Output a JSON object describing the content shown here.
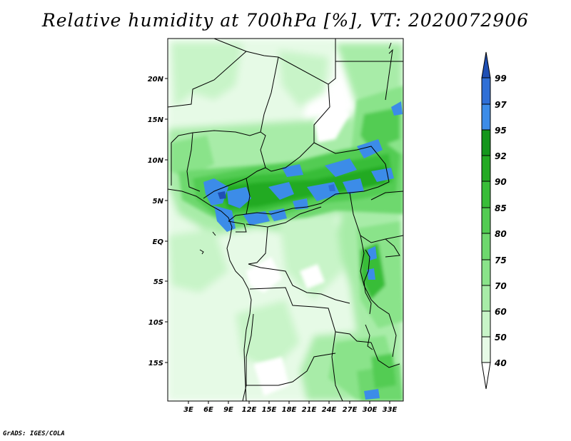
{
  "title": "Relative humidity at 700hPa [%], VT: 2020072906",
  "credit": "GrADS: IGES/COLA",
  "map": {
    "lat_labels": [
      "20N",
      "15N",
      "10N",
      "5N",
      "EQ",
      "5S",
      "10S",
      "15S"
    ],
    "lon_labels": [
      "3E",
      "6E",
      "9E",
      "12E",
      "15E",
      "18E",
      "21E",
      "24E",
      "27E",
      "30E",
      "33E"
    ]
  },
  "colorbar": {
    "levels": [
      "40",
      "50",
      "60",
      "70",
      "75",
      "80",
      "85",
      "90",
      "92",
      "95",
      "97",
      "99"
    ],
    "colors": {
      "c0": "#ffffff",
      "c40": "#e6fae6",
      "c50": "#c8f4c8",
      "c60": "#a8eca8",
      "c70": "#8ae38a",
      "c75": "#6ed86e",
      "c80": "#52cc52",
      "c85": "#38bd38",
      "c90": "#23aa23",
      "c92": "#14961c",
      "c95": "#3c8ce8",
      "c97": "#2f6fd6",
      "c99": "#1f4fb4"
    }
  }
}
